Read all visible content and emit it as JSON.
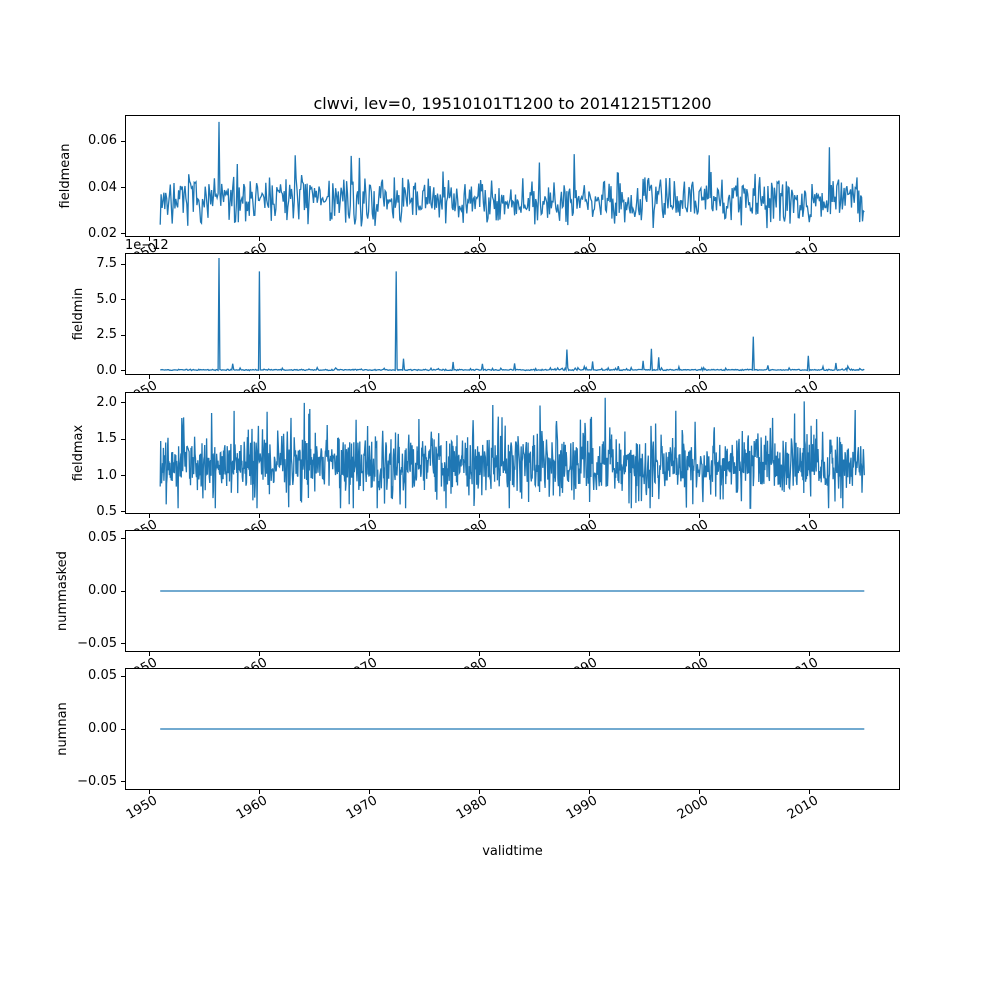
{
  "figure": {
    "title": "clwvi, lev=0, 19510101T1200 to 20141215T1200",
    "xlabel": "validtime",
    "line_color": "#1f77b4",
    "background": "#ffffff",
    "xlim": [
      1947.8,
      2018.2
    ],
    "x_start": 1951.0,
    "x_end": 2014.96,
    "x_ticks": [
      1950,
      1960,
      1970,
      1980,
      1990,
      2000,
      2010
    ],
    "x_tick_labels": [
      "1950",
      "1960",
      "1970",
      "1980",
      "1990",
      "2000",
      "2010"
    ]
  },
  "chart_data": [
    {
      "type": "line",
      "name": "fieldmean",
      "ylabel": "fieldmean",
      "ylim": [
        0.0185,
        0.0715
      ],
      "yticks": [
        0.02,
        0.04,
        0.06
      ],
      "ytick_labels": [
        "0.02",
        "0.04",
        "0.06"
      ],
      "legend": "none",
      "grid": false,
      "series": {
        "kind": "noisy",
        "seed": 7,
        "n": 768,
        "base": 0.0345,
        "spread": 0.0115,
        "spike_chance": 0.12,
        "spike_scale": 0.01,
        "neg_chance": 0.3,
        "clip": [
          0.0215,
          0.069
        ],
        "spikes": [
          [
            1956.37,
            0.0685
          ],
          [
            2011.83,
            0.0575
          ],
          [
            1963.3,
            0.054
          ],
          [
            1988.6,
            0.0545
          ],
          [
            2000.9,
            0.054
          ]
        ]
      }
    },
    {
      "type": "line",
      "name": "fieldmin",
      "ylabel": "fieldmin",
      "offset_text": "1e−12",
      "ylim": [
        -0.3,
        8.3
      ],
      "yticks": [
        0.0,
        2.5,
        5.0,
        7.5
      ],
      "ytick_labels": [
        "0.0",
        "2.5",
        "5.0",
        "7.5"
      ],
      "legend": "none",
      "grid": false,
      "series": {
        "kind": "noisy",
        "seed": 13,
        "n": 768,
        "base": 0.06,
        "spread": 0.05,
        "spike_chance": 0.06,
        "spike_scale": 0.15,
        "neg_chance": 0.0,
        "clip": [
          0.005,
          8.0
        ],
        "spikes": [
          [
            1956.33,
            7.95
          ],
          [
            1957.6,
            0.5
          ],
          [
            1960.02,
            7.0
          ],
          [
            1962.1,
            0.18
          ],
          [
            1964.5,
            0.12
          ],
          [
            1967.0,
            0.15
          ],
          [
            1969.3,
            0.12
          ],
          [
            1972.4,
            7.0
          ],
          [
            1973.1,
            0.85
          ],
          [
            1975.6,
            0.18
          ],
          [
            1977.6,
            0.62
          ],
          [
            1979.2,
            0.15
          ],
          [
            1980.3,
            0.48
          ],
          [
            1981.9,
            0.18
          ],
          [
            1983.2,
            0.52
          ],
          [
            1985.1,
            0.15
          ],
          [
            1986.4,
            0.2
          ],
          [
            1987.95,
            1.5
          ],
          [
            1989.5,
            0.3
          ],
          [
            1990.3,
            0.65
          ],
          [
            1991.7,
            0.2
          ],
          [
            1992.6,
            0.32
          ],
          [
            1993.8,
            0.22
          ],
          [
            1994.9,
            0.7
          ],
          [
            1995.6,
            1.55
          ],
          [
            1996.3,
            0.95
          ],
          [
            1998.1,
            0.28
          ],
          [
            2000.2,
            0.2
          ],
          [
            2002.4,
            0.18
          ],
          [
            2004.85,
            2.4
          ],
          [
            2006.2,
            0.38
          ],
          [
            2008.1,
            0.2
          ],
          [
            2009.9,
            1.05
          ],
          [
            2011.2,
            0.3
          ],
          [
            2012.35,
            0.55
          ],
          [
            2013.5,
            0.32
          ]
        ]
      }
    },
    {
      "type": "line",
      "name": "fieldmax",
      "ylabel": "fieldmax",
      "ylim": [
        0.47,
        2.15
      ],
      "yticks": [
        0.5,
        1.0,
        1.5,
        2.0
      ],
      "ytick_labels": [
        "0.5",
        "1.0",
        "1.5",
        "2.0"
      ],
      "legend": "none",
      "grid": false,
      "series": {
        "kind": "noisy",
        "seed": 21,
        "n": 1536,
        "base": 1.14,
        "spread": 0.44,
        "spike_chance": 0.3,
        "spike_scale": 0.5,
        "neg_chance": 0.45,
        "clip": [
          0.55,
          2.05
        ],
        "spikes": [
          [
            1991.4,
            2.07
          ],
          [
            1964.1,
            2.0
          ],
          [
            2009.5,
            2.02
          ]
        ]
      }
    },
    {
      "type": "line",
      "name": "nummasked",
      "ylabel": "nummasked",
      "ylim": [
        -0.058,
        0.058
      ],
      "yticks": [
        -0.05,
        0.0,
        0.05
      ],
      "ytick_labels": [
        "−0.05",
        "0.00",
        "0.05"
      ],
      "legend": "none",
      "grid": false,
      "series": {
        "kind": "flat",
        "value": 0.0
      }
    },
    {
      "type": "line",
      "name": "numnan",
      "ylabel": "numnan",
      "ylim": [
        -0.058,
        0.058
      ],
      "yticks": [
        -0.05,
        0.0,
        0.05
      ],
      "ytick_labels": [
        "−0.05",
        "0.00",
        "0.05"
      ],
      "legend": "none",
      "grid": false,
      "series": {
        "kind": "flat",
        "value": 0.0
      }
    }
  ]
}
